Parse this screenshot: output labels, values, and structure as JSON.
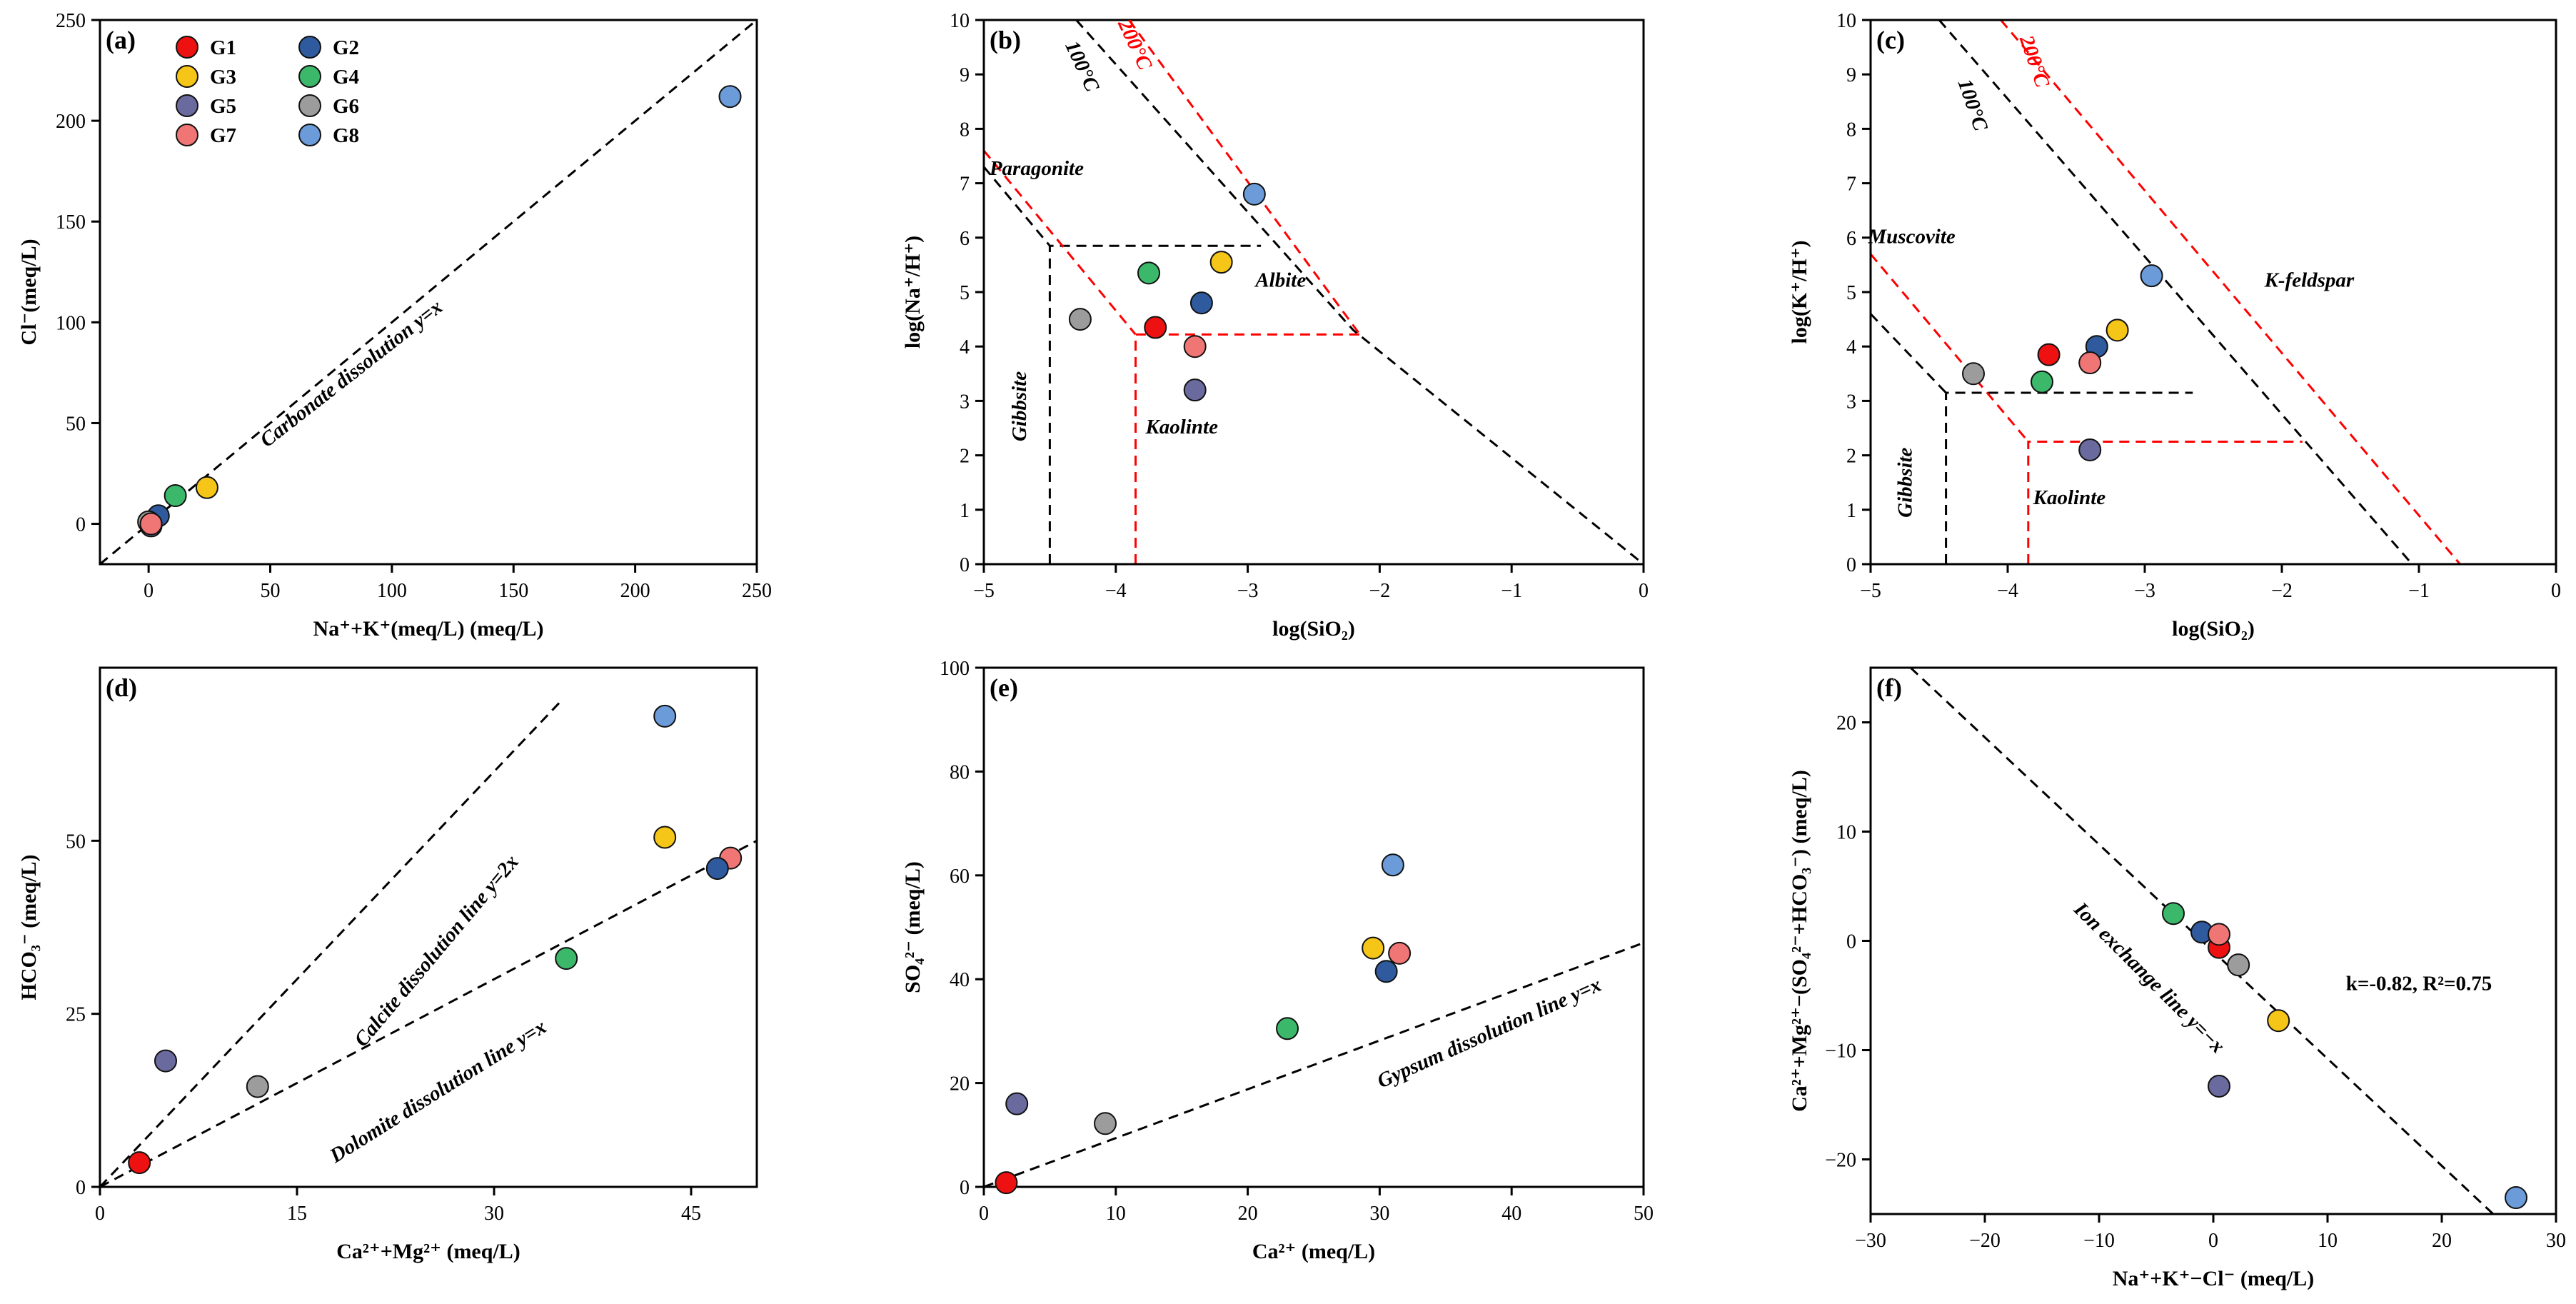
{
  "colors": {
    "G1": "#ee1111",
    "G2": "#2f5b9e",
    "G3": "#f5c518",
    "G4": "#3cb86a",
    "G5": "#6a6a9e",
    "G6": "#9c9c9c",
    "G7": "#f07676",
    "G8": "#6b9bd8",
    "red_line": "#ff0000",
    "black_line": "#000000"
  },
  "legend": [
    {
      "key": "G1",
      "label": "G1"
    },
    {
      "key": "G2",
      "label": "G2"
    },
    {
      "key": "G3",
      "label": "G3"
    },
    {
      "key": "G4",
      "label": "G4"
    },
    {
      "key": "G5",
      "label": "G5"
    },
    {
      "key": "G6",
      "label": "G6"
    },
    {
      "key": "G7",
      "label": "G7"
    },
    {
      "key": "G8",
      "label": "G8"
    }
  ],
  "chart_data": [
    {
      "id": "a",
      "panel_label": "(a)",
      "type": "scatter",
      "xlabel": "Na⁺+K⁺(meq/L) (meq/L)",
      "ylabel": "Cl⁻(meq/L)",
      "xlim": [
        -20,
        250
      ],
      "ylim": [
        -20,
        250
      ],
      "xticks": [
        0,
        50,
        100,
        150,
        200,
        250
      ],
      "yticks": [
        0,
        50,
        100,
        150,
        200,
        250
      ],
      "xtick_labels": [
        "0",
        "50",
        "100",
        "150",
        "200",
        "250"
      ],
      "ytick_labels": [
        "0",
        "50",
        "100",
        "150",
        "200",
        "250"
      ],
      "points": [
        {
          "group": "G2",
          "x": 4,
          "y": 4
        },
        {
          "group": "G1",
          "x": 1,
          "y": 0
        },
        {
          "group": "G6",
          "x": 0,
          "y": 1
        },
        {
          "group": "G5",
          "x": 1,
          "y": -1
        },
        {
          "group": "G4",
          "x": 11,
          "y": 14
        },
        {
          "group": "G3",
          "x": 24,
          "y": 18
        },
        {
          "group": "G7",
          "x": 1,
          "y": 0
        },
        {
          "group": "G8",
          "x": 239,
          "y": 212
        }
      ],
      "lines": [
        {
          "color": "black",
          "pts": [
            [
              -20,
              -20
            ],
            [
              250,
              250
            ]
          ]
        }
      ],
      "annotations": [
        {
          "text": "Carbonate dissolution y=x",
          "x": 85,
          "y": 72,
          "rotate": -38
        }
      ]
    },
    {
      "id": "b",
      "panel_label": "(b)",
      "type": "scatter",
      "xlabel": "log(SiO₂)",
      "ylabel": "log(Na⁺/H⁺)",
      "xlim": [
        -5,
        0
      ],
      "ylim": [
        0,
        10
      ],
      "xticks": [
        -5,
        -4,
        -3,
        -2,
        -1,
        0
      ],
      "yticks": [
        0,
        1,
        2,
        3,
        4,
        5,
        6,
        7,
        8,
        9,
        10
      ],
      "xtick_labels": [
        "−5",
        "−4",
        "−3",
        "−2",
        "−1",
        "0"
      ],
      "ytick_labels": [
        "0",
        "1",
        "2",
        "3",
        "4",
        "5",
        "6",
        "7",
        "8",
        "9",
        "10"
      ],
      "points": [
        {
          "group": "G8",
          "x": -2.95,
          "y": 6.8
        },
        {
          "group": "G4",
          "x": -3.75,
          "y": 5.35
        },
        {
          "group": "G3",
          "x": -3.2,
          "y": 5.55
        },
        {
          "group": "G2",
          "x": -3.35,
          "y": 4.8
        },
        {
          "group": "G6",
          "x": -4.27,
          "y": 4.5
        },
        {
          "group": "G1",
          "x": -3.7,
          "y": 4.35
        },
        {
          "group": "G7",
          "x": -3.4,
          "y": 4.0
        },
        {
          "group": "G5",
          "x": -3.4,
          "y": 3.2
        }
      ],
      "lines": [
        {
          "color": "black",
          "pts": [
            [
              -4.5,
              0
            ],
            [
              -4.5,
              5.85
            ],
            [
              -2.9,
              5.85
            ]
          ]
        },
        {
          "color": "black",
          "pts": [
            [
              -5,
              7.3
            ],
            [
              -4.5,
              5.85
            ]
          ]
        },
        {
          "color": "black",
          "pts": [
            [
              -4.3,
              10
            ],
            [
              -2.2,
              4.3
            ],
            [
              0,
              0
            ]
          ]
        },
        {
          "color": "red",
          "pts": [
            [
              -3.85,
              0
            ],
            [
              -3.85,
              4.22
            ],
            [
              -2.15,
              4.22
            ]
          ]
        },
        {
          "color": "red",
          "pts": [
            [
              -5,
              7.6
            ],
            [
              -3.85,
              4.22
            ]
          ]
        },
        {
          "color": "red",
          "pts": [
            [
              -3.9,
              10
            ],
            [
              -2.15,
              4.22
            ]
          ]
        }
      ],
      "annotations": [
        {
          "text": "Paragonite",
          "x": -4.6,
          "y": 7.15,
          "rotate": 0
        },
        {
          "text": "Albite",
          "x": -2.75,
          "y": 5.1,
          "rotate": 0
        },
        {
          "text": "Gibbsite",
          "x": -4.68,
          "y": 2.9,
          "rotate": -90
        },
        {
          "text": "Kaolinte",
          "x": -3.5,
          "y": 2.4,
          "rotate": 0
        },
        {
          "text": "100°C",
          "x": -4.3,
          "y": 9.1,
          "rotate": 65
        },
        {
          "text": "200°C",
          "x": -3.9,
          "y": 9.5,
          "rotate": 65,
          "color": "red"
        }
      ]
    },
    {
      "id": "c",
      "panel_label": "(c)",
      "type": "scatter",
      "xlabel": "log(SiO₂)",
      "ylabel": "log(K⁺/H⁺)",
      "xlim": [
        -5,
        0
      ],
      "ylim": [
        0,
        10
      ],
      "xticks": [
        -5,
        -4,
        -3,
        -2,
        -1,
        0
      ],
      "yticks": [
        0,
        1,
        2,
        3,
        4,
        5,
        6,
        7,
        8,
        9,
        10
      ],
      "xtick_labels": [
        "−5",
        "−4",
        "−3",
        "−2",
        "−1",
        "0"
      ],
      "ytick_labels": [
        "0",
        "1",
        "2",
        "3",
        "4",
        "5",
        "6",
        "7",
        "8",
        "9",
        "10"
      ],
      "points": [
        {
          "group": "G8",
          "x": -2.95,
          "y": 5.3
        },
        {
          "group": "G3",
          "x": -3.2,
          "y": 4.3
        },
        {
          "group": "G2",
          "x": -3.35,
          "y": 4.0
        },
        {
          "group": "G1",
          "x": -3.7,
          "y": 3.85
        },
        {
          "group": "G7",
          "x": -3.4,
          "y": 3.7
        },
        {
          "group": "G6",
          "x": -4.25,
          "y": 3.5
        },
        {
          "group": "G4",
          "x": -3.75,
          "y": 3.35
        },
        {
          "group": "G5",
          "x": -3.4,
          "y": 2.1
        }
      ],
      "lines": [
        {
          "color": "black",
          "pts": [
            [
              -4.45,
              0
            ],
            [
              -4.45,
              3.15
            ],
            [
              -2.65,
              3.15
            ]
          ]
        },
        {
          "color": "black",
          "pts": [
            [
              -5,
              4.6
            ],
            [
              -4.45,
              3.15
            ]
          ]
        },
        {
          "color": "black",
          "pts": [
            [
              -4.5,
              10
            ],
            [
              -1.05,
              0
            ]
          ]
        },
        {
          "color": "red",
          "pts": [
            [
              -3.85,
              0
            ],
            [
              -3.85,
              2.25
            ],
            [
              -1.85,
              2.25
            ]
          ]
        },
        {
          "color": "red",
          "pts": [
            [
              -5,
              5.7
            ],
            [
              -3.85,
              2.25
            ]
          ]
        },
        {
          "color": "red",
          "pts": [
            [
              -4.05,
              10
            ],
            [
              -0.7,
              0
            ]
          ]
        }
      ],
      "annotations": [
        {
          "text": "Muscovite",
          "x": -4.7,
          "y": 5.9,
          "rotate": 0
        },
        {
          "text": "K-feldspar",
          "x": -1.8,
          "y": 5.1,
          "rotate": 0
        },
        {
          "text": "Gibbsite",
          "x": -4.7,
          "y": 1.5,
          "rotate": -90
        },
        {
          "text": "Kaolinte",
          "x": -3.55,
          "y": 1.1,
          "rotate": 0
        },
        {
          "text": "100°C",
          "x": -4.3,
          "y": 8.4,
          "rotate": 71
        },
        {
          "text": "200°C",
          "x": -3.85,
          "y": 9.2,
          "rotate": 71,
          "color": "red"
        }
      ]
    },
    {
      "id": "d",
      "panel_label": "(d)",
      "type": "scatter",
      "xlabel": "Ca²⁺+Mg²⁺ (meq/L)",
      "ylabel": "HCO₃⁻ (meq/L)",
      "xlim": [
        0,
        50
      ],
      "ylim": [
        0,
        75
      ],
      "xticks": [
        0,
        15,
        30,
        45
      ],
      "yticks": [
        0,
        25,
        50
      ],
      "xtick_labels": [
        "0",
        "15",
        "30",
        "45"
      ],
      "ytick_labels": [
        "0",
        "25",
        "50"
      ],
      "points": [
        {
          "group": "G8",
          "x": 43,
          "y": 68
        },
        {
          "group": "G3",
          "x": 43,
          "y": 50.5
        },
        {
          "group": "G7",
          "x": 48,
          "y": 47.5
        },
        {
          "group": "G2",
          "x": 47,
          "y": 46
        },
        {
          "group": "G4",
          "x": 35.5,
          "y": 33
        },
        {
          "group": "G5",
          "x": 5,
          "y": 18.2
        },
        {
          "group": "G6",
          "x": 12,
          "y": 14.5
        },
        {
          "group": "G1",
          "x": 3,
          "y": 3.5
        }
      ],
      "lines": [
        {
          "color": "black",
          "pts": [
            [
              0,
              0
            ],
            [
              50,
              50
            ]
          ]
        },
        {
          "color": "black",
          "pts": [
            [
              0,
              0
            ],
            [
              35,
              70
            ]
          ]
        }
      ],
      "annotations": [
        {
          "text": "Calcite dissolution line y=2x",
          "x": 26,
          "y": 33.5,
          "rotate": -50
        },
        {
          "text": "Dolomite dissolution line y=x",
          "x": 26,
          "y": 13,
          "rotate": -32
        }
      ]
    },
    {
      "id": "e",
      "panel_label": "(e)",
      "type": "scatter",
      "xlabel": "Ca²⁺ (meq/L)",
      "ylabel": "SO₄²⁻ (meq/L)",
      "xlim": [
        0,
        50
      ],
      "ylim": [
        0,
        100
      ],
      "xticks": [
        0,
        10,
        20,
        30,
        40,
        50
      ],
      "yticks": [
        0,
        20,
        40,
        60,
        80,
        100
      ],
      "xtick_labels": [
        "0",
        "10",
        "20",
        "30",
        "40",
        "50"
      ],
      "ytick_labels": [
        "0",
        "20",
        "40",
        "60",
        "80",
        "100"
      ],
      "points": [
        {
          "group": "G8",
          "x": 31,
          "y": 62
        },
        {
          "group": "G3",
          "x": 29.5,
          "y": 46
        },
        {
          "group": "G7",
          "x": 31.5,
          "y": 45
        },
        {
          "group": "G2",
          "x": 30.5,
          "y": 41.5
        },
        {
          "group": "G4",
          "x": 23,
          "y": 30.5
        },
        {
          "group": "G5",
          "x": 2.5,
          "y": 16
        },
        {
          "group": "G6",
          "x": 9.2,
          "y": 12.2
        },
        {
          "group": "G1",
          "x": 1.7,
          "y": 0.8
        }
      ],
      "lines": [
        {
          "color": "black",
          "pts": [
            [
              0,
              0
            ],
            [
              50,
              47
            ]
          ]
        }
      ],
      "annotations": [
        {
          "text": "Gypsum dissolution line y=x",
          "x": 38.5,
          "y": 28.5,
          "rotate": -24
        }
      ]
    },
    {
      "id": "f",
      "panel_label": "(f)",
      "type": "scatter",
      "xlabel": "Na⁺+K⁺−Cl⁻ (meq/L)",
      "ylabel": "Ca²⁺+Mg²⁺−(SO₄²⁻+HCO₃⁻) (meq/L)",
      "xlim": [
        -30,
        30
      ],
      "ylim": [
        -25,
        25
      ],
      "xticks": [
        -30,
        -20,
        -10,
        0,
        10,
        20,
        30
      ],
      "yticks": [
        -20,
        -10,
        0,
        10,
        20
      ],
      "xtick_labels": [
        "−30",
        "−20",
        "−10",
        "0",
        "10",
        "20",
        "30"
      ],
      "ytick_labels": [
        "−20",
        "−10",
        "0",
        "10",
        "20"
      ],
      "points": [
        {
          "group": "G4",
          "x": -3.5,
          "y": 2.5
        },
        {
          "group": "G2",
          "x": -1,
          "y": 0.8
        },
        {
          "group": "G1",
          "x": 0.5,
          "y": -0.6
        },
        {
          "group": "G7",
          "x": 0.5,
          "y": 0.6
        },
        {
          "group": "G6",
          "x": 2.2,
          "y": -2.2
        },
        {
          "group": "G3",
          "x": 5.7,
          "y": -7.3
        },
        {
          "group": "G5",
          "x": 0.5,
          "y": -13.3
        },
        {
          "group": "G8",
          "x": 26.5,
          "y": -23.5
        }
      ],
      "lines": [
        {
          "color": "black",
          "pts": [
            [
              -26.5,
              25
            ],
            [
              24.5,
              -25
            ]
          ]
        }
      ],
      "annotations": [
        {
          "text": "Ion exchange line y=−x",
          "x": -6,
          "y": -3.8,
          "rotate": 45
        },
        {
          "text": "k=-0.82, R²=0.75",
          "x": 18,
          "y": -4.5,
          "rotate": 0,
          "upright": true
        }
      ]
    }
  ]
}
